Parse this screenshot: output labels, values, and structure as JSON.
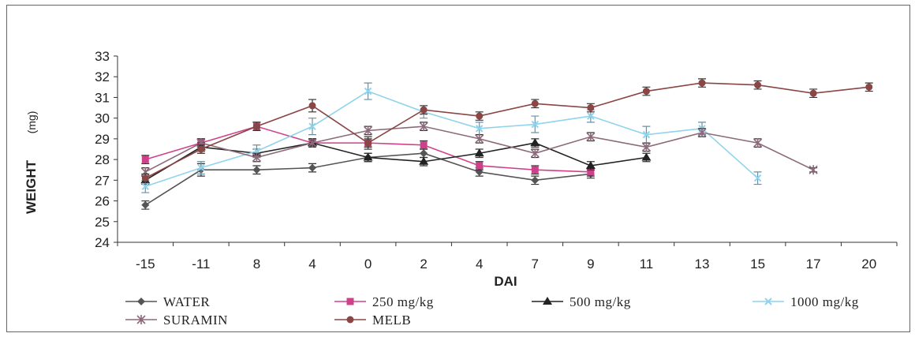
{
  "chart_data": {
    "type": "line",
    "xlabel": "DAI",
    "ylabel": "WEIGHT",
    "ylabel_unit": "(mg)",
    "categories": [
      "-15",
      "-11",
      "8",
      "4",
      "0",
      "2",
      "4",
      "7",
      "9",
      "11",
      "13",
      "15",
      "17",
      "20"
    ],
    "ylim": [
      24,
      33
    ],
    "yticks": [
      24,
      25,
      26,
      27,
      28,
      29,
      30,
      31,
      32,
      33
    ],
    "grid": false,
    "legend_position": "bottom",
    "series": [
      {
        "name": "WATER",
        "color": "#555555",
        "marker": "diamond",
        "values": [
          25.8,
          27.5,
          27.5,
          27.6,
          28.1,
          28.3,
          27.4,
          27.0,
          27.3,
          null,
          null,
          null,
          null,
          null
        ],
        "errors": [
          0.2,
          0.3,
          0.2,
          0.2,
          0.2,
          0.2,
          0.2,
          0.2,
          0.2,
          null,
          null,
          null,
          null,
          null
        ]
      },
      {
        "name": "250 mg/kg",
        "color": "#d0408a",
        "marker": "square",
        "values": [
          28.0,
          28.8,
          29.6,
          28.8,
          28.8,
          28.7,
          27.7,
          27.5,
          27.4,
          null,
          null,
          null,
          null,
          null
        ],
        "errors": [
          0.2,
          0.2,
          0.2,
          0.2,
          0.3,
          0.2,
          0.2,
          0.2,
          0.2,
          null,
          null,
          null,
          null,
          null
        ]
      },
      {
        "name": "500 mg/kg",
        "color": "#222222",
        "marker": "triangle",
        "values": [
          27.0,
          28.6,
          28.3,
          28.8,
          28.1,
          27.9,
          28.3,
          28.8,
          27.7,
          28.1,
          null,
          null,
          null,
          null
        ],
        "errors": [
          0.2,
          0.2,
          0.2,
          0.2,
          0.2,
          0.2,
          0.2,
          0.2,
          0.2,
          0.2,
          null,
          null,
          null,
          null
        ]
      },
      {
        "name": "1000 mg/kg",
        "color": "#8fd3ec",
        "marker": "x",
        "values": [
          26.7,
          27.6,
          28.4,
          29.6,
          31.3,
          30.3,
          29.5,
          29.7,
          30.1,
          29.2,
          29.5,
          27.1,
          null,
          null
        ],
        "errors": [
          0.3,
          0.3,
          0.3,
          0.4,
          0.4,
          0.3,
          0.3,
          0.4,
          0.3,
          0.4,
          0.3,
          0.3,
          null,
          null
        ]
      },
      {
        "name": "SURAMIN",
        "color": "#8c6a7a",
        "marker": "asterisk",
        "values": [
          27.4,
          28.8,
          28.1,
          28.8,
          29.4,
          29.6,
          29.0,
          28.3,
          29.1,
          28.6,
          29.3,
          28.8,
          27.5,
          null
        ],
        "errors": [
          0.2,
          0.2,
          0.2,
          0.2,
          0.2,
          0.2,
          0.2,
          0.2,
          0.2,
          0.2,
          0.2,
          0.2,
          0.1,
          null
        ]
      },
      {
        "name": "MELB",
        "color": "#8a4545",
        "marker": "circle",
        "values": [
          27.1,
          28.5,
          29.6,
          30.6,
          28.8,
          30.4,
          30.1,
          30.7,
          30.5,
          31.3,
          31.7,
          31.6,
          31.2,
          31.5
        ],
        "errors": [
          0.2,
          0.2,
          0.2,
          0.3,
          0.2,
          0.2,
          0.2,
          0.2,
          0.2,
          0.2,
          0.2,
          0.2,
          0.2,
          0.2
        ]
      }
    ]
  }
}
